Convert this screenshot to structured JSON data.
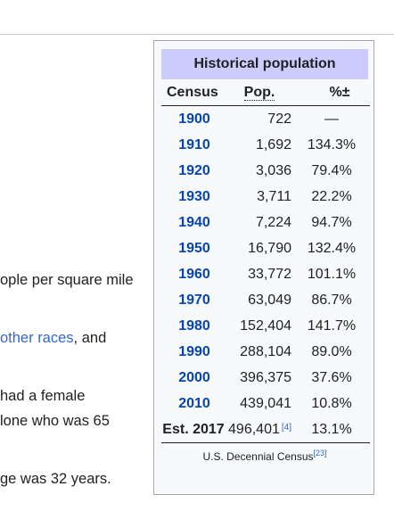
{
  "article": {
    "lines": [
      {
        "text": "ople per square mile"
      },
      {
        "link": "other races",
        "text": ", and"
      },
      {
        "text": "had a female"
      },
      {
        "text": "lone who was 65"
      },
      {
        "text": "ge was 32 years."
      }
    ]
  },
  "infobox": {
    "title": "Historical population",
    "headers": {
      "census": "Census",
      "pop": "Pop.",
      "pct": "%±"
    },
    "rows": [
      {
        "year": "1900",
        "pop": "722",
        "pct": "—"
      },
      {
        "year": "1910",
        "pop": "1,692",
        "pct": "134.3%"
      },
      {
        "year": "1920",
        "pop": "3,036",
        "pct": "79.4%"
      },
      {
        "year": "1930",
        "pop": "3,711",
        "pct": "22.2%"
      },
      {
        "year": "1940",
        "pop": "7,224",
        "pct": "94.7%"
      },
      {
        "year": "1950",
        "pop": "16,790",
        "pct": "132.4%"
      },
      {
        "year": "1960",
        "pop": "33,772",
        "pct": "101.1%"
      },
      {
        "year": "1970",
        "pop": "63,049",
        "pct": "86.7%"
      },
      {
        "year": "1980",
        "pop": "152,404",
        "pct": "141.7%"
      },
      {
        "year": "1990",
        "pop": "288,104",
        "pct": "89.0%"
      },
      {
        "year": "2000",
        "pop": "396,375",
        "pct": "37.6%"
      },
      {
        "year": "2010",
        "pop": "439,041",
        "pct": "10.8%"
      },
      {
        "year": "Est. 2017",
        "pop": "496,401",
        "ref": "[4]",
        "pct": "13.1%"
      }
    ],
    "footer": "U.S. Decennial Census",
    "footer_ref": "[23]"
  }
}
